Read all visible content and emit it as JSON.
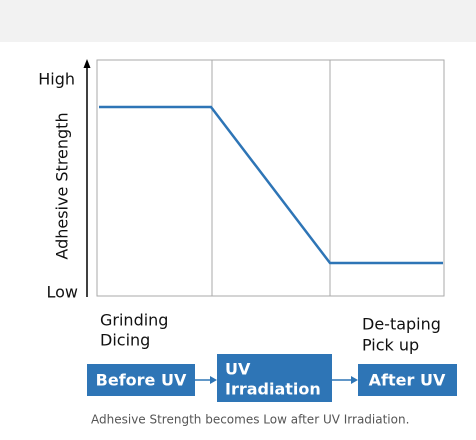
{
  "axis": {
    "title": "Adhesive Strength",
    "high": "High",
    "low": "Low"
  },
  "phases": [
    {
      "lines": [
        "Grinding",
        "Dicing"
      ]
    },
    {
      "lines": [
        "De-taping",
        "Pick up"
      ]
    }
  ],
  "steps": [
    {
      "lines": [
        "Before UV"
      ]
    },
    {
      "lines": [
        "UV",
        "Irradiation"
      ]
    },
    {
      "lines": [
        "After UV"
      ]
    }
  ],
  "caption": "Adhesive Strength becomes Low after UV Irradiation."
}
